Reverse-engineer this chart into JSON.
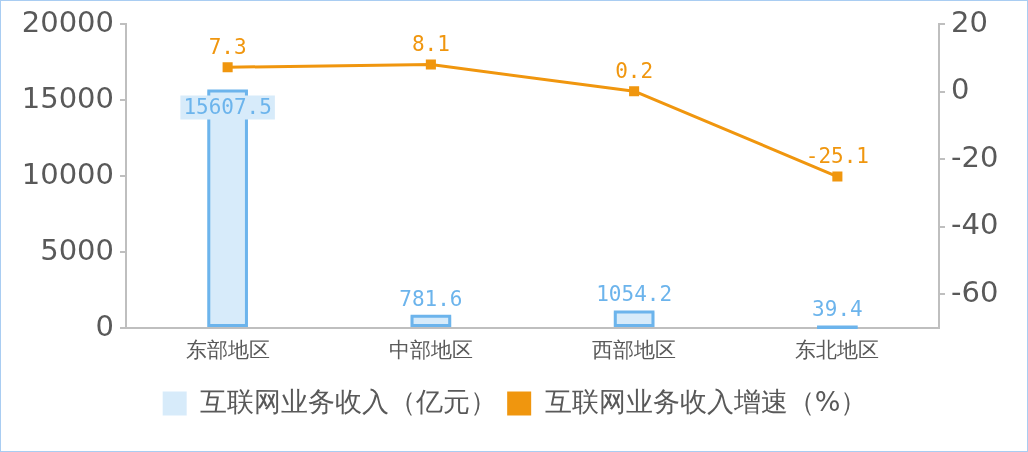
{
  "chart_data": {
    "type": "bar",
    "categories": [
      "东部地区",
      "中部地区",
      "西部地区",
      "东北地区"
    ],
    "series": [
      {
        "name": "互联网业务收入（亿元）",
        "color": "#6cb4ec",
        "values": [
          15607.5,
          781.6,
          1054.2,
          39.4
        ]
      },
      {
        "name": "互联网业务收入增速（%）",
        "type": "line",
        "axis": "y2",
        "color": "#f0960e",
        "values": [
          7.3,
          8.1,
          0.2,
          -25.1
        ]
      }
    ],
    "ylim": [
      0,
      20000
    ],
    "yticks": [
      0,
      5000,
      10000,
      15000,
      20000
    ],
    "y2lim": [
      -70,
      20
    ],
    "y2ticks": [
      -60,
      -40,
      -20,
      0,
      20
    ],
    "grid": false,
    "legend": "bottom",
    "marker": "square",
    "line_style": "solid",
    "data_labels": true
  }
}
